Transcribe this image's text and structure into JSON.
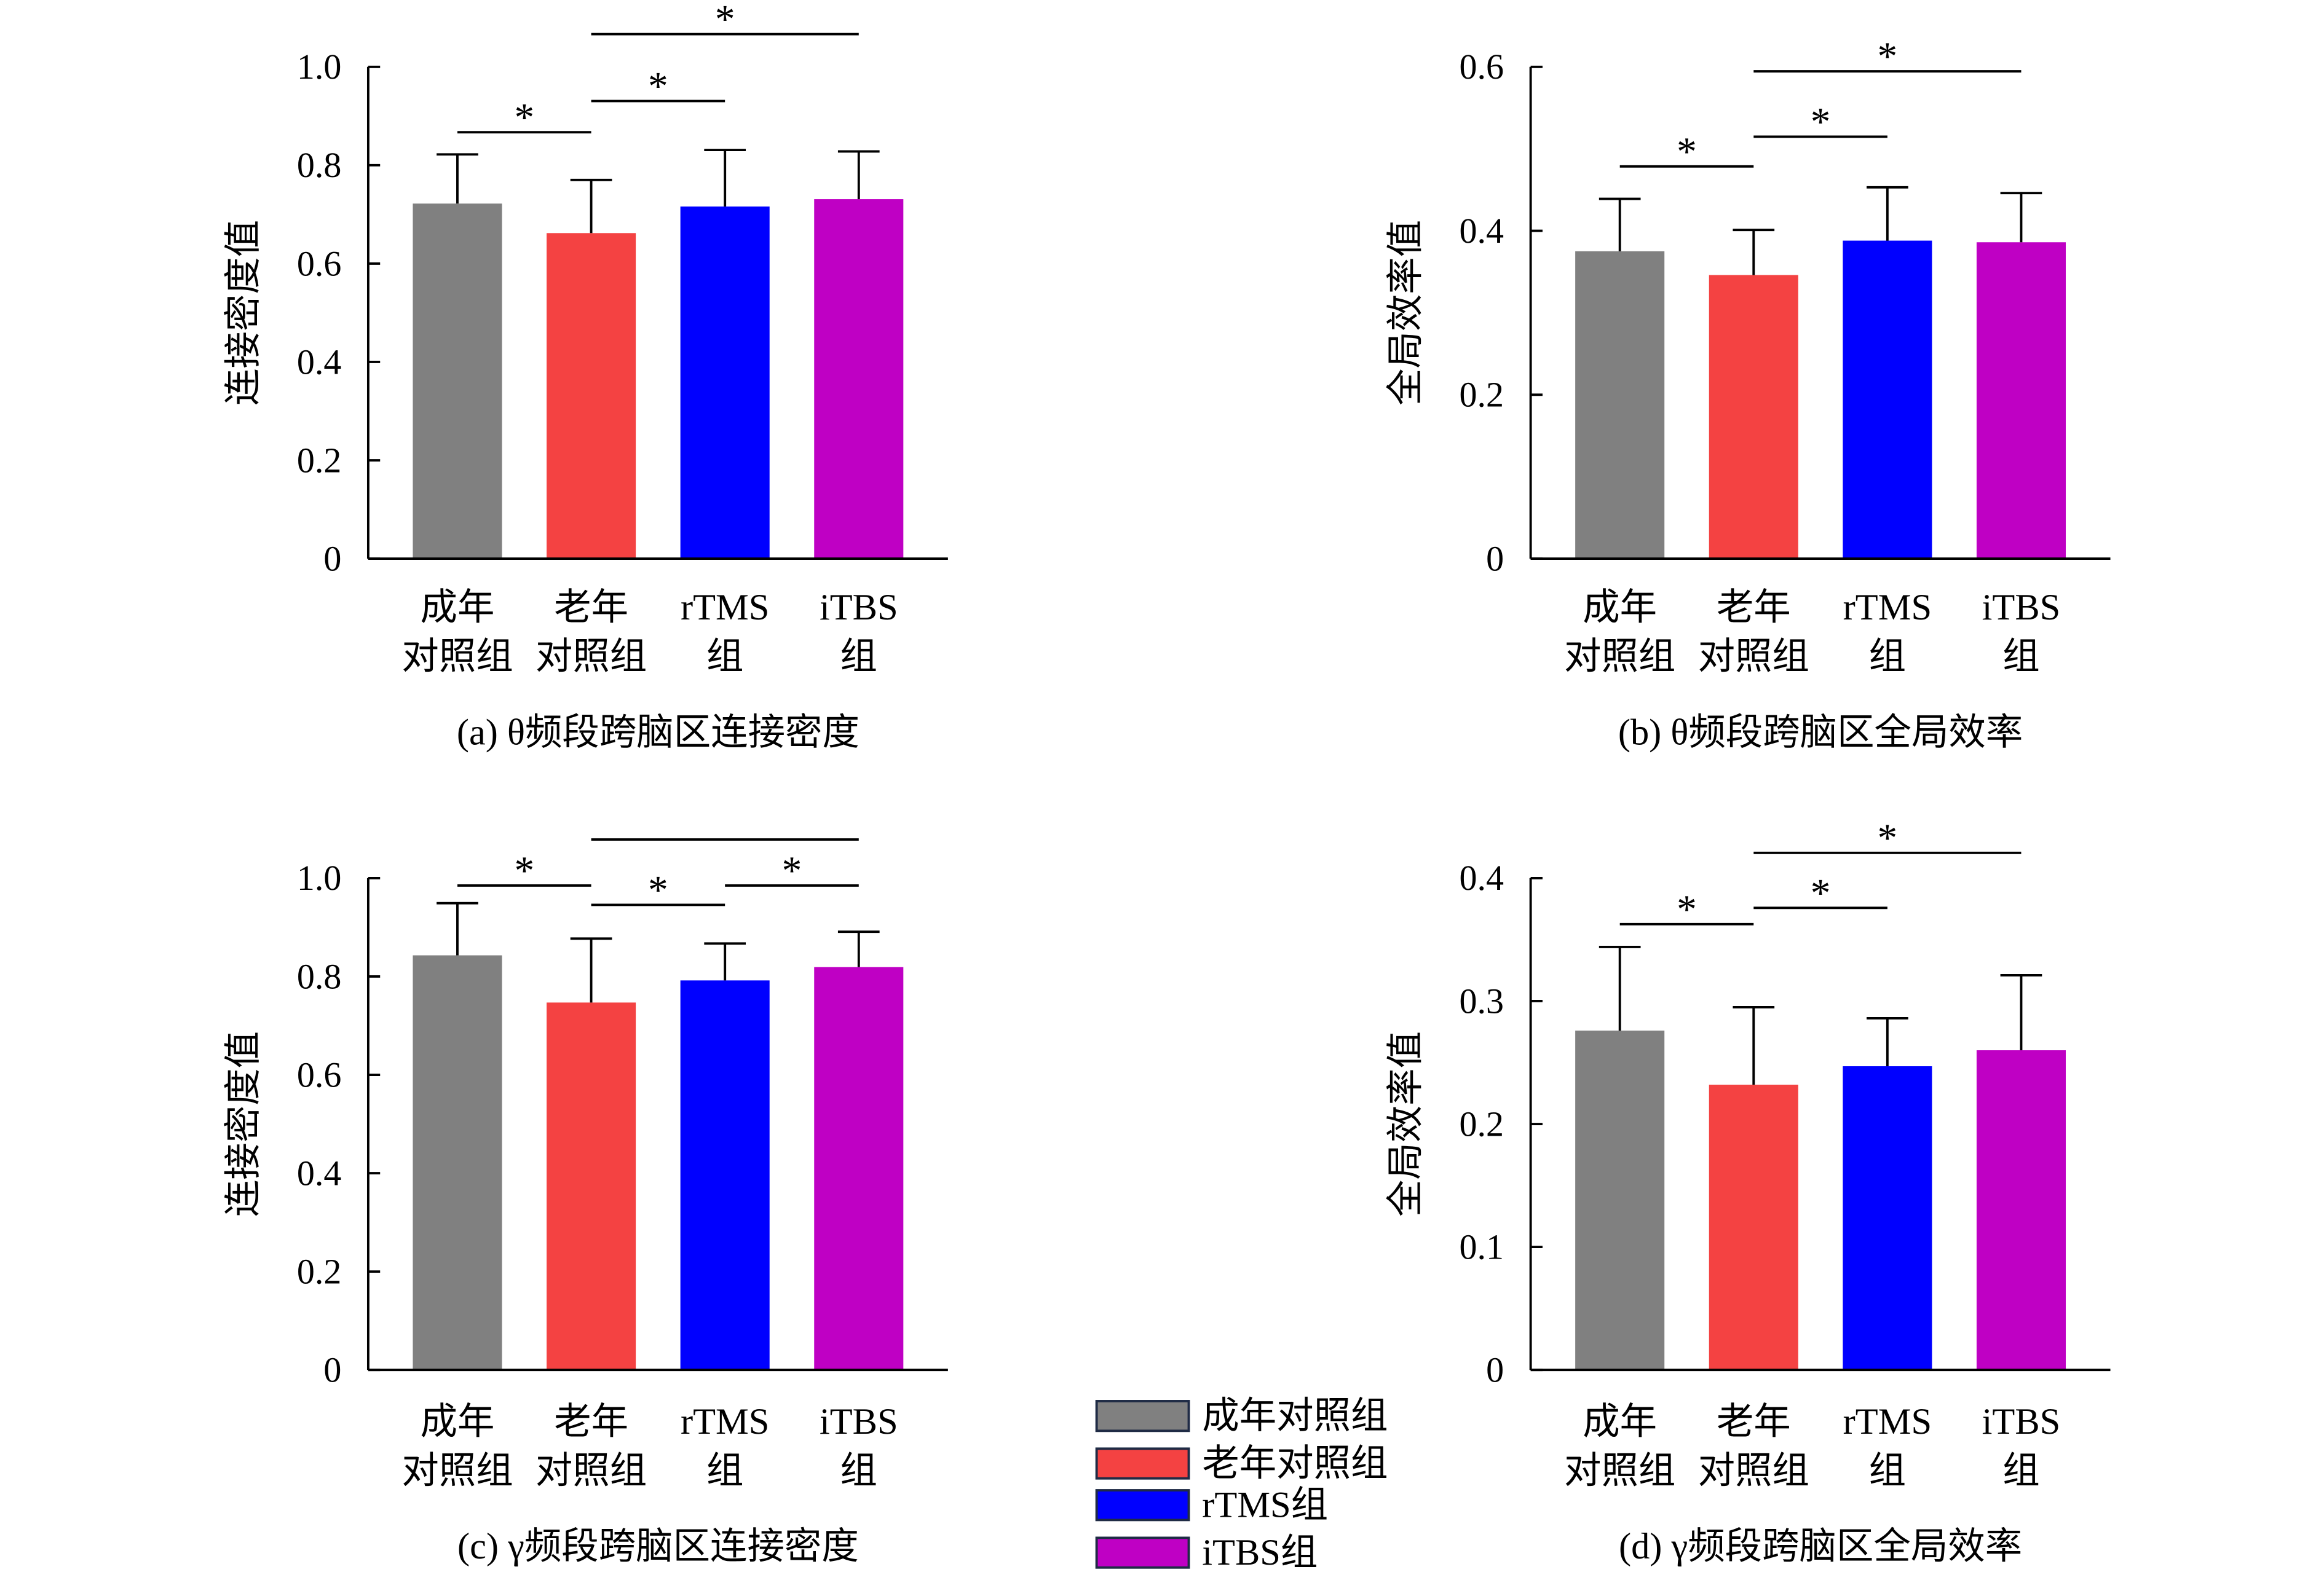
{
  "legend": {
    "position": "bottom-center",
    "items": [
      {
        "label": "成年对照组",
        "color": "#808080"
      },
      {
        "label": "老年对照组",
        "color": "#f44242"
      },
      {
        "label": "rTMS组",
        "color": "#0000ff"
      },
      {
        "label": "iTBS组",
        "color": "#bf00c4"
      }
    ]
  },
  "chart_data": [
    {
      "type": "bar",
      "caption": "(a) θ频段跨脑区连接密度",
      "ylabel": "连接密度值",
      "categories": [
        [
          "成年",
          "对照组"
        ],
        [
          "老年",
          "对照组"
        ],
        [
          "rTMS",
          "组"
        ],
        [
          "iTBS",
          "组"
        ]
      ],
      "values": [
        0.722,
        0.662,
        0.716,
        0.731
      ],
      "errors": [
        0.1,
        0.108,
        0.115,
        0.097
      ],
      "ylim": [
        0,
        1.0
      ],
      "yticks": [
        0,
        0.2,
        0.4,
        0.6,
        0.8,
        1.0
      ],
      "ytick_labels": [
        "0",
        "0.2",
        "0.4",
        "0.6",
        "0.8",
        "1.0"
      ],
      "grid": false,
      "significance": [
        {
          "pair": [
            0,
            1
          ],
          "label": "*"
        },
        {
          "pair": [
            1,
            2
          ],
          "label": "*"
        },
        {
          "pair": [
            1,
            3
          ],
          "label": "*"
        }
      ]
    },
    {
      "type": "bar",
      "caption": "(b) θ频段跨脑区全局效率",
      "ylabel": "全局效率值",
      "categories": [
        [
          "成年",
          "对照组"
        ],
        [
          "老年",
          "对照组"
        ],
        [
          "rTMS",
          "组"
        ],
        [
          "iTBS",
          "组"
        ]
      ],
      "values": [
        0.375,
        0.346,
        0.388,
        0.386
      ],
      "errors": [
        0.064,
        0.055,
        0.065,
        0.06
      ],
      "ylim": [
        0,
        0.6
      ],
      "yticks": [
        0,
        0.2,
        0.4,
        0.6
      ],
      "ytick_labels": [
        "0",
        "0.2",
        "0.4",
        "0.6"
      ],
      "grid": false,
      "significance": [
        {
          "pair": [
            0,
            1
          ],
          "label": "*"
        },
        {
          "pair": [
            1,
            2
          ],
          "label": "*"
        },
        {
          "pair": [
            1,
            3
          ],
          "label": "*"
        }
      ]
    },
    {
      "type": "bar",
      "caption": "(c) γ频段跨脑区连接密度",
      "ylabel": "连接密度值",
      "categories": [
        [
          "成年",
          "对照组"
        ],
        [
          "老年",
          "对照组"
        ],
        [
          "rTMS",
          "组"
        ],
        [
          "iTBS",
          "组"
        ]
      ],
      "values": [
        0.843,
        0.747,
        0.792,
        0.819
      ],
      "errors": [
        0.106,
        0.13,
        0.075,
        0.072
      ],
      "ylim": [
        0,
        1.0
      ],
      "yticks": [
        0,
        0.2,
        0.4,
        0.6,
        0.8,
        1.0
      ],
      "ytick_labels": [
        "0",
        "0.2",
        "0.4",
        "0.6",
        "0.8",
        "1.0"
      ],
      "grid": false,
      "significance": [
        {
          "pair": [
            0,
            1
          ],
          "label": "*"
        },
        {
          "pair": [
            1,
            2
          ],
          "label": "*"
        },
        {
          "pair": [
            2,
            3
          ],
          "label": "*"
        },
        {
          "pair": [
            1,
            3
          ]
        }
      ]
    },
    {
      "type": "bar",
      "caption": "(d) γ频段跨脑区全局效率",
      "ylabel": "全局效率值",
      "categories": [
        [
          "成年",
          "对照组"
        ],
        [
          "老年",
          "对照组"
        ],
        [
          "rTMS",
          "组"
        ],
        [
          "iTBS",
          "组"
        ]
      ],
      "values": [
        0.276,
        0.232,
        0.247,
        0.26
      ],
      "errors": [
        0.068,
        0.063,
        0.039,
        0.061
      ],
      "ylim": [
        0,
        0.4
      ],
      "yticks": [
        0,
        0.1,
        0.2,
        0.3,
        0.4
      ],
      "ytick_labels": [
        "0",
        "0.1",
        "0.2",
        "0.3",
        "0.4"
      ],
      "grid": false,
      "significance": [
        {
          "pair": [
            0,
            1
          ],
          "label": "*"
        },
        {
          "pair": [
            1,
            2
          ],
          "label": "*"
        },
        {
          "pair": [
            1,
            3
          ],
          "label": "*"
        }
      ]
    }
  ]
}
